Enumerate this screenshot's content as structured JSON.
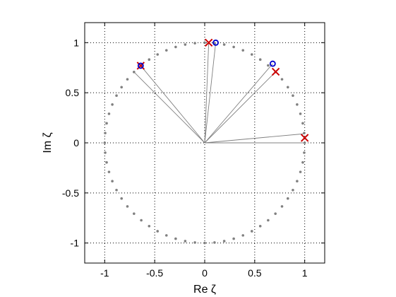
{
  "chart_data": {
    "type": "scatter",
    "xlabel": "Re ζ",
    "ylabel": "Im ζ",
    "xlim": [
      -1.2,
      1.2
    ],
    "ylim": [
      -1.2,
      1.2
    ],
    "xticks": [
      -1,
      -0.5,
      0,
      0.5,
      1
    ],
    "yticks": [
      -1,
      -0.5,
      0,
      0.5,
      1
    ],
    "xtick_labels": [
      "-1",
      "-0.5",
      "0",
      "0.5",
      "1"
    ],
    "ytick_labels": [
      "-1",
      "-0.5",
      "0",
      "0.5",
      "1"
    ],
    "grid": true,
    "unit_circle_points": 64,
    "series": [
      {
        "marker": "x",
        "color": "#cc0000",
        "points": [
          [
            0.04,
            1.0
          ],
          [
            0.71,
            0.71
          ],
          [
            -0.64,
            0.77
          ],
          [
            1.0,
            0.05
          ]
        ]
      },
      {
        "marker": "o",
        "color": "#0000cc",
        "points": [
          [
            0.11,
            1.0
          ],
          [
            0.68,
            0.79
          ],
          [
            -0.64,
            0.77
          ]
        ]
      }
    ],
    "radial_lines": [
      [
        0.04,
        1.0
      ],
      [
        0.11,
        1.0
      ],
      [
        0.68,
        0.79
      ],
      [
        0.71,
        0.71
      ],
      [
        -0.71,
        0.71
      ],
      [
        -0.64,
        0.77
      ],
      [
        0.99,
        0.09
      ],
      [
        1.0,
        0.0
      ]
    ],
    "colors": {
      "circle": "#808080",
      "lines": "#808080",
      "grid": "#000000"
    }
  }
}
